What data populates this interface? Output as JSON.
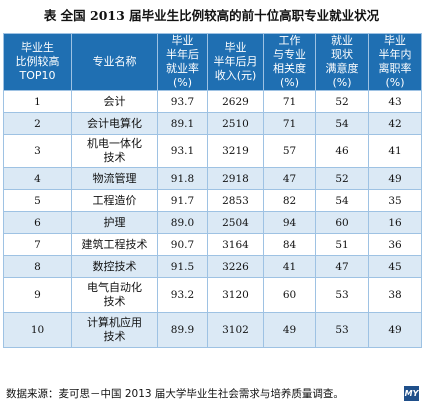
{
  "title": "表 全国 2013 届毕业生比例较高的前十位高职专业就业状况",
  "headers": {
    "rank": [
      "毕业生",
      "比例较高",
      "TOP10"
    ],
    "major": [
      "专业名称"
    ],
    "employment": [
      "毕业",
      "半年后",
      "就业率",
      "(%)"
    ],
    "income": [
      "毕业",
      "半年后月",
      "收入(元)"
    ],
    "relevance": [
      "工作",
      "与专业",
      "相关度",
      "(%)"
    ],
    "satisfaction": [
      "就业",
      "现状",
      "满意度",
      "(%)"
    ],
    "turnover": [
      "毕业",
      "半年内",
      "离职率",
      "(%)"
    ]
  },
  "rows": [
    {
      "rank": "1",
      "major": [
        "会计"
      ],
      "employment": "93.7",
      "income": "2629",
      "relevance": "71",
      "satisfaction": "52",
      "turnover": "43"
    },
    {
      "rank": "2",
      "major": [
        "会计电算化"
      ],
      "employment": "89.1",
      "income": "2510",
      "relevance": "71",
      "satisfaction": "54",
      "turnover": "42"
    },
    {
      "rank": "3",
      "major": [
        "机电一体化",
        "技术"
      ],
      "employment": "93.1",
      "income": "3219",
      "relevance": "57",
      "satisfaction": "46",
      "turnover": "41"
    },
    {
      "rank": "4",
      "major": [
        "物流管理"
      ],
      "employment": "91.8",
      "income": "2918",
      "relevance": "47",
      "satisfaction": "52",
      "turnover": "49"
    },
    {
      "rank": "5",
      "major": [
        "工程造价"
      ],
      "employment": "91.7",
      "income": "2853",
      "relevance": "82",
      "satisfaction": "54",
      "turnover": "35"
    },
    {
      "rank": "6",
      "major": [
        "护理"
      ],
      "employment": "89.0",
      "income": "2504",
      "relevance": "94",
      "satisfaction": "60",
      "turnover": "16"
    },
    {
      "rank": "7",
      "major": [
        "建筑工程技术"
      ],
      "employment": "90.7",
      "income": "3164",
      "relevance": "84",
      "satisfaction": "51",
      "turnover": "36"
    },
    {
      "rank": "8",
      "major": [
        "数控技术"
      ],
      "employment": "91.5",
      "income": "3226",
      "relevance": "41",
      "satisfaction": "47",
      "turnover": "45"
    },
    {
      "rank": "9",
      "major": [
        "电气自动化",
        "技术"
      ],
      "employment": "93.2",
      "income": "3120",
      "relevance": "60",
      "satisfaction": "53",
      "turnover": "38"
    },
    {
      "rank": "10",
      "major": [
        "计算机应用",
        "技术"
      ],
      "employment": "89.9",
      "income": "3102",
      "relevance": "49",
      "satisfaction": "53",
      "turnover": "49"
    }
  ],
  "source": "数据来源：麦可思－中国 2013 届大学毕业生社会需求与培养质量调查。",
  "logo": "MY",
  "colors": {
    "header_bg": "#1f6fb2",
    "stripe": "#dbe9f5",
    "border": "#9ec2e3"
  }
}
